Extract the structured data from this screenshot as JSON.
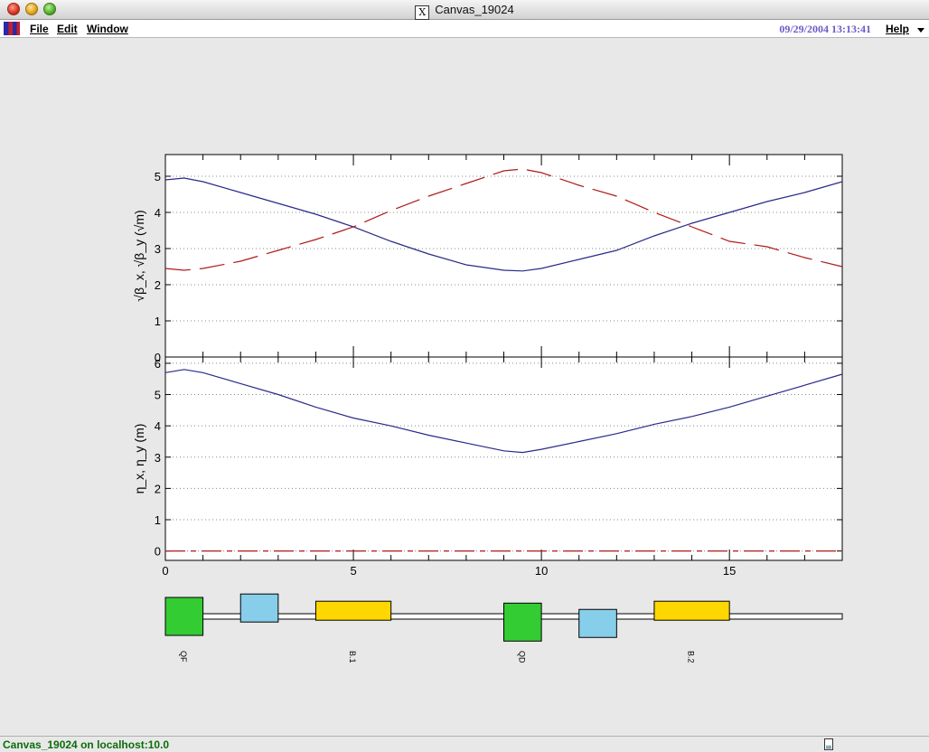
{
  "window": {
    "title": "Canvas_19024",
    "x_glyph": "X"
  },
  "menubar": {
    "items": [
      "File",
      "Edit",
      "Window"
    ],
    "datetime": "09/29/2004 13:13:41",
    "help": "Help"
  },
  "status": {
    "text": "Canvas_19024 on localhost:10.0"
  },
  "colors": {
    "beta_x": "#2a2a8a",
    "beta_y": "#b01a1a",
    "quad_f": "#33cc33",
    "quad_d": "#33cc33",
    "sextupole": "#87ceeb",
    "bend": "#ffd700",
    "datetime": "#6b5bc9",
    "status": "#0b6d0b"
  },
  "chart_data": [
    {
      "type": "line",
      "ylabel": "√β_x, √β_y (√m)",
      "xlim": [
        0,
        18
      ],
      "ylim": [
        0,
        5.6
      ],
      "yticks": [
        0,
        1,
        2,
        3,
        4,
        5
      ],
      "xtick_labels": [],
      "grid": "horizontal-dotted",
      "series": [
        {
          "values": [
            [
              0,
              4.9
            ],
            [
              0.5,
              4.95
            ],
            [
              1,
              4.85
            ],
            [
              2,
              4.55
            ],
            [
              3,
              4.25
            ],
            [
              4,
              3.95
            ],
            [
              5,
              3.6
            ],
            [
              6,
              3.2
            ],
            [
              7,
              2.85
            ],
            [
              8,
              2.55
            ],
            [
              9,
              2.4
            ],
            [
              9.5,
              2.38
            ],
            [
              10,
              2.45
            ],
            [
              11,
              2.7
            ],
            [
              12,
              2.95
            ],
            [
              13,
              3.35
            ],
            [
              14,
              3.7
            ],
            [
              15,
              4.0
            ],
            [
              16,
              4.3
            ],
            [
              17,
              4.55
            ],
            [
              18,
              4.85
            ]
          ]
        },
        {
          "values": [
            [
              0,
              2.45
            ],
            [
              0.5,
              2.4
            ],
            [
              1,
              2.45
            ],
            [
              2,
              2.65
            ],
            [
              3,
              2.95
            ],
            [
              4,
              3.25
            ],
            [
              5,
              3.6
            ],
            [
              6,
              4.05
            ],
            [
              7,
              4.45
            ],
            [
              8,
              4.8
            ],
            [
              9,
              5.15
            ],
            [
              9.5,
              5.2
            ],
            [
              10,
              5.1
            ],
            [
              11,
              4.75
            ],
            [
              12,
              4.45
            ],
            [
              13,
              4.0
            ],
            [
              14,
              3.6
            ],
            [
              15,
              3.2
            ],
            [
              16,
              3.05
            ],
            [
              17,
              2.75
            ],
            [
              18,
              2.5
            ]
          ]
        }
      ]
    },
    {
      "type": "line",
      "ylabel": "η_x, η_y (m)",
      "xlim": [
        0,
        18
      ],
      "ylim": [
        -0.3,
        6.2
      ],
      "yticks": [
        0,
        1,
        2,
        3,
        4,
        5,
        6
      ],
      "xticks": [
        0,
        5,
        10,
        15
      ],
      "grid": "horizontal-dotted",
      "series": [
        {
          "values": [
            [
              0,
              5.7
            ],
            [
              0.5,
              5.8
            ],
            [
              1,
              5.7
            ],
            [
              2,
              5.35
            ],
            [
              3,
              5.0
            ],
            [
              4,
              4.6
            ],
            [
              5,
              4.25
            ],
            [
              6,
              4.0
            ],
            [
              7,
              3.7
            ],
            [
              8,
              3.45
            ],
            [
              9,
              3.2
            ],
            [
              9.5,
              3.15
            ],
            [
              10,
              3.25
            ],
            [
              11,
              3.5
            ],
            [
              12,
              3.75
            ],
            [
              13,
              4.05
            ],
            [
              14,
              4.3
            ],
            [
              15,
              4.6
            ],
            [
              16,
              4.95
            ],
            [
              17,
              5.3
            ],
            [
              18,
              5.65
            ]
          ]
        },
        {
          "values": [
            [
              0,
              0
            ],
            [
              18,
              0
            ]
          ]
        }
      ]
    }
  ],
  "lattice": {
    "elements": [
      {
        "kind": "quad",
        "start": 0.0,
        "end": 1.0,
        "offset": 0.0,
        "color": "quad_f",
        "label": "QF"
      },
      {
        "kind": "sext",
        "start": 2.0,
        "end": 3.0,
        "offset": 0.6,
        "color": "sextupole",
        "label": ""
      },
      {
        "kind": "bend",
        "start": 4.0,
        "end": 6.0,
        "offset": 0.6,
        "color": "bend",
        "label": "B.1"
      },
      {
        "kind": "quad",
        "start": 9.0,
        "end": 10.0,
        "offset": -0.3,
        "color": "quad_d",
        "label": "QD"
      },
      {
        "kind": "sext",
        "start": 11.0,
        "end": 12.0,
        "offset": -0.5,
        "color": "sextupole",
        "label": ""
      },
      {
        "kind": "bend",
        "start": 13.0,
        "end": 15.0,
        "offset": 0.6,
        "color": "bend",
        "label": "B.2"
      }
    ]
  }
}
